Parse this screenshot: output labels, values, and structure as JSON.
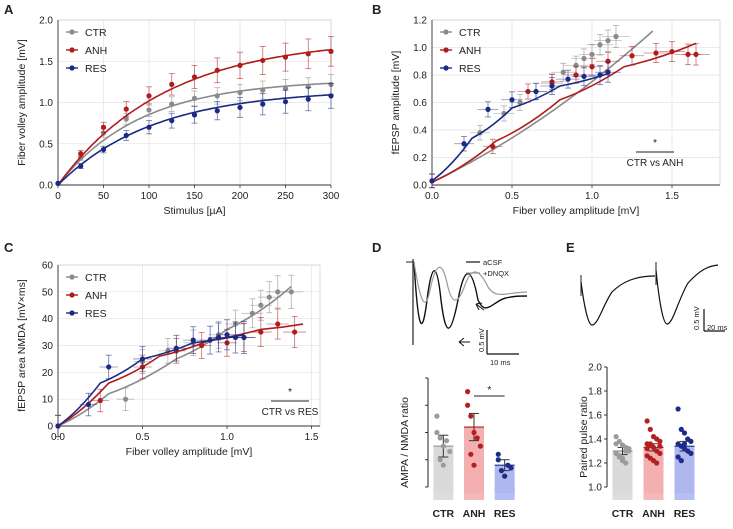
{
  "chart_data": [
    {
      "panel": "A",
      "type": "line",
      "xlabel": "Stimulus [µA]",
      "ylabel": "Fiber volley amplitude [mV]",
      "xlim": [
        0,
        300
      ],
      "ylim": [
        0,
        2.0
      ],
      "xticks": [
        "0",
        "50",
        "100",
        "150",
        "200",
        "250",
        "300"
      ],
      "yticks": [
        "0.0",
        "0.5",
        "1.0",
        "1.5",
        "2.0"
      ],
      "grid": true,
      "legend": [
        "CTR",
        "ANH",
        "RES"
      ],
      "series": [
        {
          "name": "CTR",
          "color": "#8a8a8a",
          "x": [
            0,
            25,
            50,
            75,
            100,
            125,
            150,
            175,
            200,
            225,
            250,
            275,
            300
          ],
          "y": [
            0.02,
            0.33,
            0.63,
            0.8,
            0.91,
            0.98,
            1.05,
            1.08,
            1.12,
            1.15,
            1.17,
            1.19,
            1.22
          ],
          "err": [
            0,
            0.03,
            0.05,
            0.07,
            0.08,
            0.09,
            0.09,
            0.1,
            0.1,
            0.11,
            0.11,
            0.11,
            0.12
          ],
          "fit_max": 1.28,
          "fit_k": 0.011
        },
        {
          "name": "ANH",
          "color": "#b01c1c",
          "x": [
            0,
            25,
            50,
            75,
            100,
            125,
            150,
            175,
            200,
            225,
            250,
            275,
            300
          ],
          "y": [
            0.02,
            0.38,
            0.7,
            0.92,
            1.08,
            1.22,
            1.31,
            1.39,
            1.45,
            1.51,
            1.55,
            1.59,
            1.62
          ],
          "err": [
            0,
            0.04,
            0.06,
            0.09,
            0.11,
            0.13,
            0.14,
            0.15,
            0.16,
            0.17,
            0.17,
            0.18,
            0.18
          ],
          "fit_max": 1.78,
          "fit_k": 0.0085
        },
        {
          "name": "RES",
          "color": "#1a2a85",
          "x": [
            0,
            25,
            50,
            75,
            100,
            125,
            150,
            175,
            200,
            225,
            250,
            275,
            300
          ],
          "y": [
            0.02,
            0.23,
            0.43,
            0.6,
            0.7,
            0.78,
            0.85,
            0.9,
            0.94,
            0.98,
            1.01,
            1.04,
            1.08
          ],
          "err": [
            0,
            0.03,
            0.04,
            0.06,
            0.08,
            0.09,
            0.1,
            0.11,
            0.12,
            0.13,
            0.14,
            0.14,
            0.15
          ],
          "fit_max": 1.16,
          "fit_k": 0.0095
        }
      ]
    },
    {
      "panel": "B",
      "type": "scatter",
      "xlabel": "Fiber volley amplitude [mV]",
      "ylabel": "fEPSP amplitude [mV]",
      "xlim": [
        0,
        1.8
      ],
      "ylim": [
        0,
        1.2
      ],
      "xticks": [
        "0.0",
        "0.5",
        "1.0",
        "1.5"
      ],
      "yticks": [
        "0.0",
        "0.2",
        "0.4",
        "0.6",
        "0.8",
        "1.0",
        "1.2"
      ],
      "grid": true,
      "legend": [
        "CTR",
        "ANH",
        "RES"
      ],
      "annotation": {
        "star": "*",
        "text": "CTR vs ANH"
      },
      "series": [
        {
          "name": "CTR",
          "color": "#8a8a8a",
          "x": [
            0,
            0.3,
            0.45,
            0.55,
            0.65,
            0.75,
            0.82,
            0.9,
            0.95,
            1.0,
            1.05,
            1.1,
            1.15
          ],
          "y": [
            0.03,
            0.38,
            0.52,
            0.6,
            0.68,
            0.74,
            0.82,
            0.87,
            0.92,
            0.95,
            1.02,
            1.05,
            1.08
          ],
          "fit": [
            [
              0,
              0.02
            ],
            [
              1.38,
              1.12
            ]
          ]
        },
        {
          "name": "ANH",
          "color": "#b01c1c",
          "x": [
            0,
            0.38,
            0.6,
            0.75,
            0.9,
            1.0,
            1.1,
            1.25,
            1.4,
            1.5,
            1.6,
            1.65
          ],
          "y": [
            0.03,
            0.28,
            0.68,
            0.75,
            0.8,
            0.86,
            0.9,
            0.94,
            0.96,
            0.97,
            0.95,
            0.95
          ],
          "fit": [
            [
              0,
              0.02
            ],
            [
              0.4,
              0.32
            ],
            [
              0.8,
              0.62
            ],
            [
              1.2,
              0.86
            ],
            [
              1.65,
              1.03
            ]
          ]
        },
        {
          "name": "RES",
          "color": "#1a2a85",
          "x": [
            0,
            0.2,
            0.35,
            0.5,
            0.65,
            0.75,
            0.85,
            0.95,
            1.05,
            1.1
          ],
          "y": [
            0.03,
            0.3,
            0.55,
            0.62,
            0.68,
            0.72,
            0.77,
            0.79,
            0.8,
            0.82
          ],
          "fit": [
            [
              0,
              0.03
            ],
            [
              0.25,
              0.34
            ],
            [
              0.5,
              0.56
            ],
            [
              0.8,
              0.72
            ],
            [
              1.1,
              0.81
            ]
          ]
        }
      ]
    },
    {
      "panel": "C",
      "type": "scatter",
      "xlabel": "Fiber volley amplitude [mV]",
      "ylabel": "fEPSP area NMDA [mV×ms]",
      "xlim": [
        0,
        1.55
      ],
      "ylim": [
        0,
        60
      ],
      "xticks": [
        "0.0",
        "0.5",
        "1.0",
        "1.5"
      ],
      "yticks": [
        "0",
        "10",
        "20",
        "30",
        "40",
        "50",
        "60"
      ],
      "grid": true,
      "legend": [
        "CTR",
        "ANH",
        "RES"
      ],
      "annotation": {
        "star": "*",
        "text": "CTR vs RES"
      },
      "series": [
        {
          "name": "CTR",
          "color": "#8a8a8a",
          "x": [
            0,
            0.4,
            0.5,
            0.65,
            0.8,
            0.95,
            1.05,
            1.15,
            1.2,
            1.25,
            1.3,
            1.38
          ],
          "y": [
            0,
            10,
            24,
            28,
            31,
            34,
            38,
            42,
            45,
            48,
            50,
            50
          ],
          "fit": [
            [
              0,
              0
            ],
            [
              0.3,
              12
            ],
            [
              0.7,
              25
            ],
            [
              1.0,
              36
            ],
            [
              1.38,
              52
            ]
          ]
        },
        {
          "name": "ANH",
          "color": "#b01c1c",
          "x": [
            0,
            0.25,
            0.5,
            0.7,
            0.85,
            1.0,
            1.1,
            1.2,
            1.3,
            1.4
          ],
          "y": [
            0,
            9.5,
            22,
            28,
            30,
            31,
            33,
            35,
            38,
            35
          ],
          "fit": [
            [
              0,
              0
            ],
            [
              0.3,
              16
            ],
            [
              0.6,
              26
            ],
            [
              0.9,
              32
            ],
            [
              1.2,
              36
            ],
            [
              1.45,
              38
            ]
          ]
        },
        {
          "name": "RES",
          "color": "#1a2a85",
          "x": [
            0,
            0.18,
            0.3,
            0.5,
            0.7,
            0.8,
            0.9,
            0.95,
            1.0,
            1.05,
            1.1
          ],
          "y": [
            0,
            8,
            22,
            25,
            29,
            32,
            32,
            33,
            34,
            33,
            33
          ],
          "fit": [
            [
              0,
              0
            ],
            [
              0.25,
              16
            ],
            [
              0.5,
              25
            ],
            [
              0.8,
              31
            ],
            [
              1.1,
              34
            ]
          ]
        }
      ]
    },
    {
      "panel": "D",
      "type": "bar",
      "ylabel": "AMPA / NMDA ratio",
      "categories": [
        "CTR",
        "ANH",
        "RES"
      ],
      "values": [
        0.55,
        0.62,
        0.48
      ],
      "errors": [
        0.04,
        0.05,
        0.02
      ],
      "colors": [
        "#d9d9d9",
        "#f4b0b0",
        "#aeb8ef"
      ],
      "dot_colors": [
        "#9b9b9b",
        "#b51f1f",
        "#1c2b8a"
      ],
      "points": [
        [
          0.6,
          0.58,
          0.55,
          0.57,
          0.53,
          0.66,
          0.5,
          0.48
        ],
        [
          0.75,
          0.66,
          0.6,
          0.58,
          0.55,
          0.7,
          0.52,
          0.48
        ],
        [
          0.5,
          0.46,
          0.44,
          0.48,
          0.47,
          0.52
        ]
      ],
      "ylim": [
        0.4,
        0.8
      ],
      "yticks": [],
      "significance": {
        "pair": [
          "ANH",
          "RES"
        ],
        "mark": "*"
      },
      "trace_legend": [
        "aCSF",
        "+DNQX"
      ],
      "scale_bar": [
        "0.5 mV",
        "10 ms"
      ]
    },
    {
      "panel": "E",
      "type": "bar",
      "ylabel": "Paired pulse ratio",
      "categories": [
        "CTR",
        "ANH",
        "RES"
      ],
      "values": [
        1.3,
        1.33,
        1.34
      ],
      "errors": [
        0.03,
        0.03,
        0.04
      ],
      "colors": [
        "#d9d9d9",
        "#f4b0b0",
        "#aeb8ef"
      ],
      "dot_colors": [
        "#9b9b9b",
        "#b51f1f",
        "#1c2b8a"
      ],
      "points": [
        [
          1.42,
          1.38,
          1.35,
          1.33,
          1.3,
          1.28,
          1.25,
          1.22,
          1.2,
          1.32,
          1.36,
          1.26,
          1.24,
          1.3
        ],
        [
          1.55,
          1.48,
          1.42,
          1.4,
          1.38,
          1.36,
          1.35,
          1.33,
          1.3,
          1.28,
          1.26,
          1.24,
          1.22,
          1.2,
          1.34,
          1.32,
          1.36
        ],
        [
          1.65,
          1.48,
          1.45,
          1.4,
          1.38,
          1.36,
          1.34,
          1.32,
          1.3,
          1.28,
          1.25,
          1.22,
          1.36
        ]
      ],
      "ylim": [
        1.0,
        2.0
      ],
      "yticks": [
        "1.0",
        "1.2",
        "1.4",
        "1.6",
        "1.8",
        "2.0"
      ],
      "scale_bar": [
        "0.5 mV",
        "20 ms"
      ]
    }
  ],
  "panel_labels": [
    "A",
    "B",
    "C",
    "D",
    "E"
  ]
}
